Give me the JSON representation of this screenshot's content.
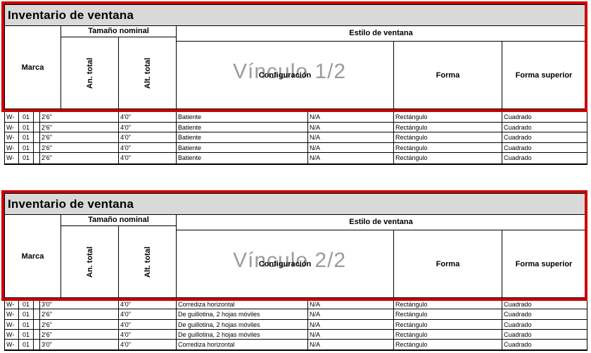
{
  "colors": {
    "selection_red": "#cc0000",
    "title_background": "#d9d9d9",
    "watermark_gray": "#9b9b9b"
  },
  "tables": [
    {
      "title": "Inventario de ventana",
      "watermark": "Vínculo 1/2",
      "header": {
        "marca": "Marca",
        "tamano_nominal": "Tamaño nominal",
        "estilo_de_ventana": "Estilo de ventana",
        "an_total": "An. total",
        "alt_total": "Alt. total",
        "configuracion": "Configuración",
        "forma": "Forma",
        "forma_superior": "Forma superior"
      },
      "rows": [
        {
          "marca_prefix": "W-",
          "marca_num": "01",
          "an": "2'6\"",
          "alt": "4'0\"",
          "configuracion": "Batiente",
          "na": "N/A",
          "forma": "Rectángulo",
          "forma_superior": "Cuadrado"
        },
        {
          "marca_prefix": "W-",
          "marca_num": "01",
          "an": "2'6\"",
          "alt": "4'0\"",
          "configuracion": "Batiente",
          "na": "N/A",
          "forma": "Rectángulo",
          "forma_superior": "Cuadrado"
        },
        {
          "marca_prefix": "W-",
          "marca_num": "01",
          "an": "2'6\"",
          "alt": "4'0\"",
          "configuracion": "Batiente",
          "na": "N/A",
          "forma": "Rectángulo",
          "forma_superior": "Cuadrado"
        },
        {
          "marca_prefix": "W-",
          "marca_num": "01",
          "an": "2'6\"",
          "alt": "4'0\"",
          "configuracion": "Batiente",
          "na": "N/A",
          "forma": "Rectángulo",
          "forma_superior": "Cuadrado"
        },
        {
          "marca_prefix": "W-",
          "marca_num": "01",
          "an": "2'6\"",
          "alt": "4'0\"",
          "configuracion": "Batiente",
          "na": "N/A",
          "forma": "Rectángulo",
          "forma_superior": "Cuadrado"
        }
      ]
    },
    {
      "title": "Inventario de ventana",
      "watermark": "Vínculo 2/2",
      "header": {
        "marca": "Marca",
        "tamano_nominal": "Tamaño nominal",
        "estilo_de_ventana": "Estilo de ventana",
        "an_total": "An. total",
        "alt_total": "Alt. total",
        "configuracion": "Configuración",
        "forma": "Forma",
        "forma_superior": "Forma superior"
      },
      "rows": [
        {
          "marca_prefix": "W-",
          "marca_num": "01",
          "an": "3'0\"",
          "alt": "4'0\"",
          "configuracion": "Corrediza horizontal",
          "na": "N/A",
          "forma": "Rectángulo",
          "forma_superior": "Cuadrado"
        },
        {
          "marca_prefix": "W-",
          "marca_num": "01",
          "an": "2'6\"",
          "alt": "4'0\"",
          "configuracion": "De guillotina, 2 hojas móviles",
          "na": "N/A",
          "forma": "Rectángulo",
          "forma_superior": "Cuadrado"
        },
        {
          "marca_prefix": "W-",
          "marca_num": "01",
          "an": "2'6\"",
          "alt": "4'0\"",
          "configuracion": "De guillotina, 2 hojas móviles",
          "na": "N/A",
          "forma": "Rectángulo",
          "forma_superior": "Cuadrado"
        },
        {
          "marca_prefix": "W-",
          "marca_num": "01",
          "an": "2'6\"",
          "alt": "4'0\"",
          "configuracion": "De guillotina, 2 hojas móviles",
          "na": "N/A",
          "forma": "Rectángulo",
          "forma_superior": "Cuadrado"
        },
        {
          "marca_prefix": "W-",
          "marca_num": "01",
          "an": "3'0\"",
          "alt": "4'0\"",
          "configuracion": "Corrediza horizontal",
          "na": "N/A",
          "forma": "Rectángulo",
          "forma_superior": "Cuadrado"
        }
      ]
    }
  ]
}
